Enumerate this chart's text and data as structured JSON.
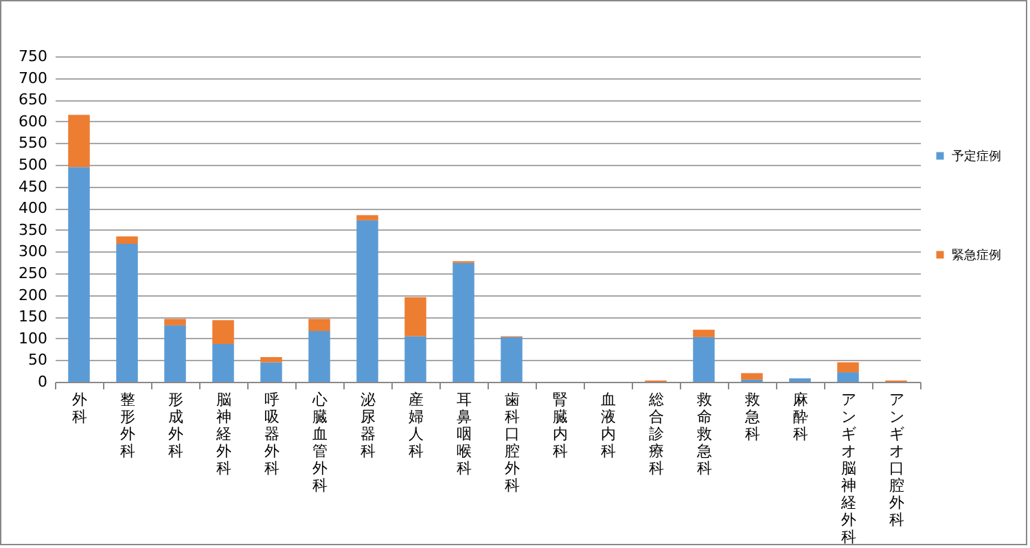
{
  "chart_data": {
    "type": "bar",
    "stacked": true,
    "categories": [
      "外科",
      "整形外科",
      "形成外科",
      "脳神経外科",
      "呼吸器外科",
      "心臓血管外科",
      "泌尿器科",
      "産婦人科",
      "耳鼻咽喉科",
      "歯科口腔外科",
      "腎臓内科",
      "血液内科",
      "総合診療科",
      "救命救急科",
      "救急科",
      "麻酔科",
      "アンギオ脳神経外科",
      "アンギオ口腔外科"
    ],
    "series": [
      {
        "name": "予定症例",
        "color": "#5b9bd5",
        "values": [
          495,
          318,
          130,
          87,
          45,
          117,
          372,
          105,
          274,
          103,
          0,
          0,
          0,
          103,
          5,
          8,
          22,
          0
        ]
      },
      {
        "name": "緊急症例",
        "color": "#ed7d31",
        "values": [
          120,
          17,
          15,
          55,
          12,
          28,
          12,
          90,
          4,
          2,
          0,
          0,
          3,
          17,
          15,
          0,
          23,
          3
        ]
      }
    ],
    "ylim": [
      0,
      750
    ],
    "yticks": [
      0,
      50,
      100,
      150,
      200,
      250,
      300,
      350,
      400,
      450,
      500,
      550,
      600,
      650,
      700,
      750
    ],
    "grid": "y",
    "legend": "right"
  }
}
